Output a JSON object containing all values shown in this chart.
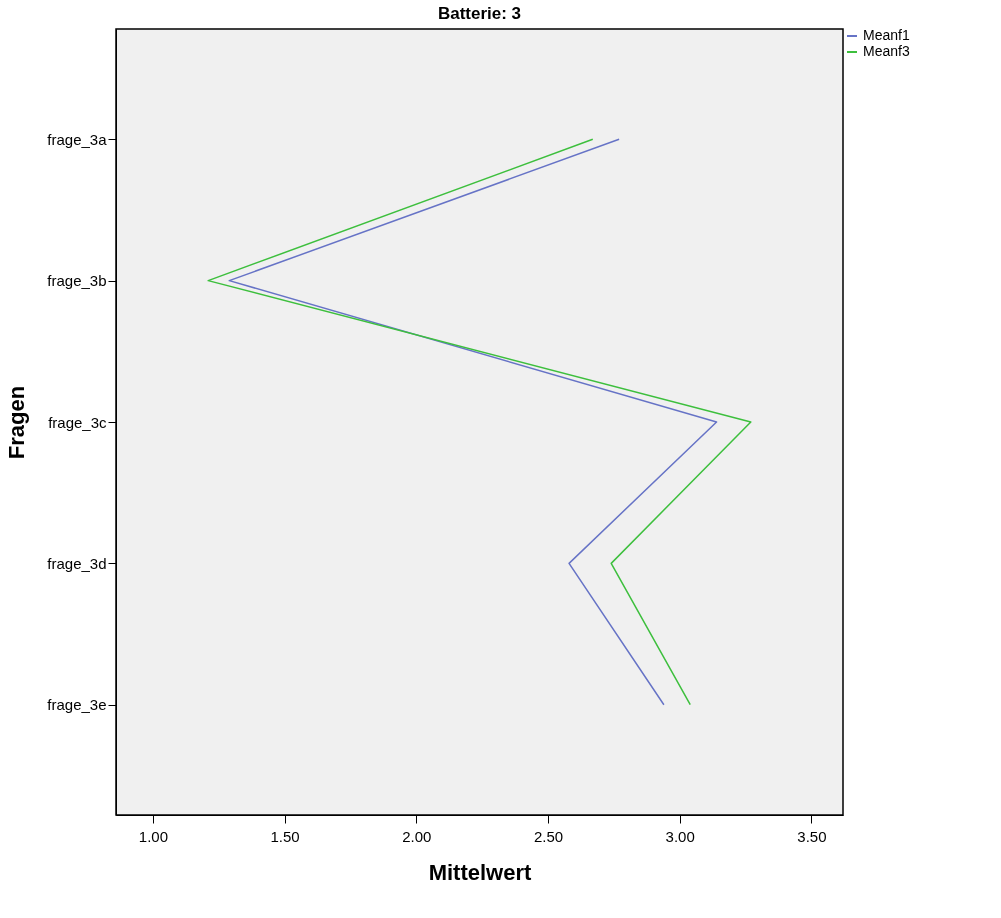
{
  "chart_data": {
    "type": "line",
    "orientation": "horizontal",
    "title": "Batterie: 3",
    "xlabel": "Mittelwert",
    "ylabel": "Fragen",
    "categories": [
      "frage_3a",
      "frage_3b",
      "frage_3c",
      "frage_3d",
      "frage_3e"
    ],
    "series": [
      {
        "name": "Meanf1",
        "color": "#6673c6",
        "values": [
          2.77,
          1.29,
          3.14,
          2.58,
          2.94
        ]
      },
      {
        "name": "Meanf3",
        "color": "#3dbf3d",
        "values": [
          2.67,
          1.21,
          3.27,
          2.74,
          3.04
        ]
      }
    ],
    "xlim": [
      0.86,
      3.62
    ],
    "xticks": [
      {
        "value": 1,
        "label": "1.00"
      },
      {
        "value": 1.5,
        "label": "1.50"
      },
      {
        "value": 2,
        "label": "2.00"
      },
      {
        "value": 2.5,
        "label": "2.50"
      },
      {
        "value": 3,
        "label": "3.00"
      },
      {
        "value": 3.5,
        "label": "3.50"
      }
    ],
    "grid": false,
    "legend": "top right",
    "marker": "none",
    "line_style": "solid"
  }
}
